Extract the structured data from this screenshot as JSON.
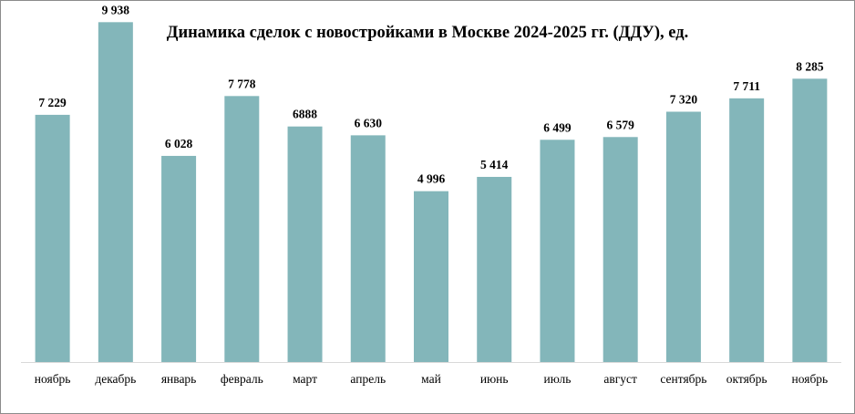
{
  "chart_data": {
    "type": "bar",
    "title": "Динамика сделок с новостройками в Москве 2024-2025 гг. (ДДУ), ед.",
    "xlabel": "",
    "ylabel": "",
    "categories": [
      "ноябрь",
      "декабрь",
      "январь",
      "февраль",
      "март",
      "апрель",
      "май",
      "июнь",
      "июль",
      "август",
      "сентябрь",
      "октябрь",
      "ноябрь"
    ],
    "values": [
      7229,
      9938,
      6028,
      7778,
      6888,
      6630,
      4996,
      5414,
      6499,
      6579,
      7320,
      7711,
      8285
    ],
    "data_labels": [
      "7 229",
      "9 938",
      "6 028",
      "7 778",
      "6888",
      "6 630",
      "4 996",
      "5 414",
      "6 499",
      "6 579",
      "7 320",
      "7 711",
      "8 285"
    ],
    "ylim": [
      0,
      10000
    ],
    "grid": false,
    "legend": "none",
    "colors": {
      "bar": "#83b6ba",
      "axis": "#d9d9d9",
      "frame": "#8c8c8c"
    }
  }
}
